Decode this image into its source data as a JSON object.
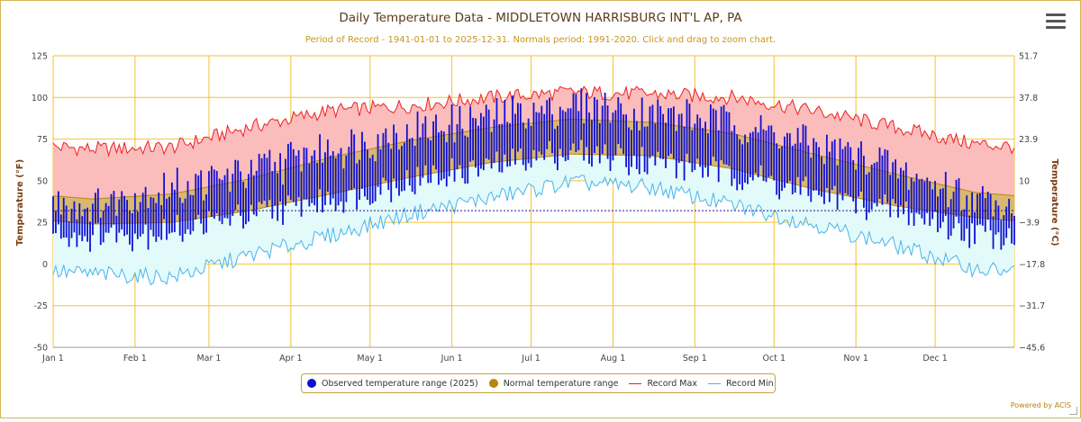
{
  "title": "Daily Temperature Data - MIDDLETOWN HARRISBURG INT'L AP, PA",
  "subtitle": "Period of Record - 1941-01-01 to 2025-12-31. Normals period: 1991-2020. Click and drag to zoom chart.",
  "menu_icon": "hamburger-menu-icon",
  "powered_by": "Powered by ACIS",
  "colors": {
    "observed": "#1010d0",
    "normal_fill": "#d6b46a",
    "normal_line": "#b8860b",
    "record_max": "#ef2020",
    "record_max_fill": "#fbbcbc",
    "record_min": "#46b4ee",
    "record_min_fill": "#e2fafa",
    "grid": "#f2c230",
    "title": "#5a3a1a",
    "subtitle": "#c9961a",
    "axis_label": "#7a3b12"
  },
  "chart_data": {
    "type": "area",
    "title": "Daily Temperature Data - MIDDLETOWN HARRISBURG INT'L AP, PA",
    "ylabel": "Temperature (°F)",
    "ylabel_right": "Temperature (°C)",
    "ylim": [
      -50,
      125
    ],
    "yticks": [
      125,
      100,
      75,
      50,
      25,
      0,
      -25,
      -50
    ],
    "yticks_right": [
      "51.7",
      "37.8",
      "23.9",
      "10",
      "−3.9",
      "−17.8",
      "−31.7",
      "−45.6"
    ],
    "x_ticks": [
      {
        "label": "Jan 1",
        "day": 0
      },
      {
        "label": "Feb 1",
        "day": 31
      },
      {
        "label": "Mar 1",
        "day": 59
      },
      {
        "label": "Apr 1",
        "day": 90
      },
      {
        "label": "May 1",
        "day": 120
      },
      {
        "label": "Jun 1",
        "day": 151
      },
      {
        "label": "Jul 1",
        "day": 181
      },
      {
        "label": "Aug 1",
        "day": 212
      },
      {
        "label": "Sep 1",
        "day": 243
      },
      {
        "label": "Oct 1",
        "day": 273
      },
      {
        "label": "Nov 1",
        "day": 304
      },
      {
        "label": "Dec 1",
        "day": 334
      }
    ],
    "days_in_year": 365,
    "freezing_line_f": 32,
    "grid": true,
    "legend_position": "bottom",
    "series": [
      {
        "name": "Observed temperature range (2025)",
        "type": "daily-range"
      },
      {
        "name": "Normal temperature range",
        "type": "band"
      },
      {
        "name": "Record Max",
        "type": "line"
      },
      {
        "name": "Record Min",
        "type": "line"
      }
    ],
    "normal_high_monthly": [
      39,
      42,
      51,
      64,
      74,
      82,
      87,
      85,
      78,
      66,
      54,
      43
    ],
    "normal_low_monthly": [
      24,
      25,
      32,
      42,
      52,
      61,
      66,
      65,
      57,
      45,
      35,
      28
    ],
    "record_max_monthly": [
      69,
      70,
      82,
      92,
      95,
      100,
      103,
      102,
      100,
      92,
      82,
      72
    ],
    "record_min_monthly": [
      -6,
      -8,
      5,
      17,
      30,
      40,
      49,
      46,
      35,
      24,
      11,
      -3
    ],
    "observed_high_monthly": [
      32,
      42,
      52,
      66,
      76,
      84,
      92,
      87,
      82,
      68,
      55,
      35
    ],
    "observed_low_monthly": [
      20,
      22,
      32,
      42,
      52,
      62,
      70,
      65,
      57,
      45,
      35,
      22
    ]
  },
  "legend": {
    "observed": "Observed temperature range (2025)",
    "normal": "Normal temperature range",
    "record_max": "Record Max",
    "record_min": "Record Min"
  }
}
